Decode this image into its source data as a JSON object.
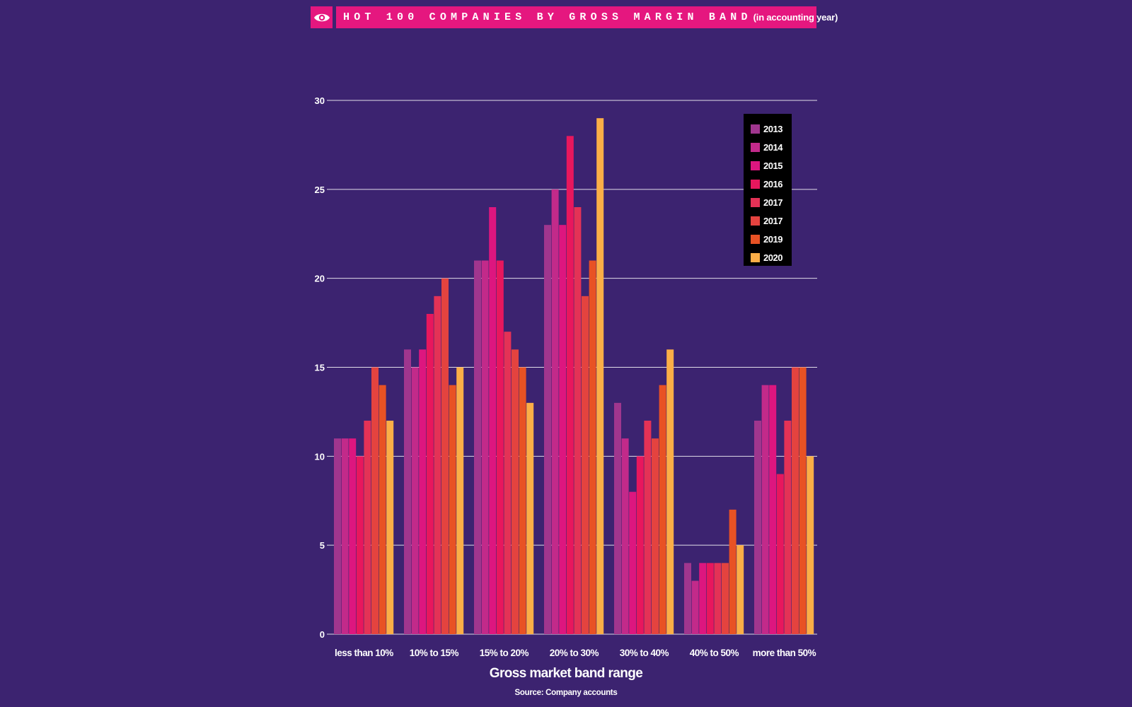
{
  "header": {
    "title": "HOT 100 COMPANIES BY GROSS MARGIN BAND",
    "subtitle": "(in accounting year)"
  },
  "icons": {
    "header_icon": "eye-icon"
  },
  "footer": {
    "source": "Source: Company accounts"
  },
  "chart_data": {
    "type": "bar",
    "title": "HOT 100 COMPANIES BY GROSS MARGIN BAND (in accounting year)",
    "xlabel": "Gross market band range",
    "ylabel": "",
    "ylim": [
      0,
      30
    ],
    "yticks": [
      0,
      5,
      10,
      15,
      20,
      25,
      30
    ],
    "grid": true,
    "legend_position": "top-right",
    "categories": [
      "less than 10%",
      "10% to 15%",
      "15% to 20%",
      "20% to 30%",
      "30% to 40%",
      "40% to 50%",
      "more than 50%"
    ],
    "series": [
      {
        "name": "2013",
        "color": "#a0368e",
        "values": [
          11,
          16,
          21,
          23,
          13,
          4,
          12
        ]
      },
      {
        "name": "2014",
        "color": "#c22a8a",
        "values": [
          11,
          15,
          21,
          25,
          11,
          3,
          14
        ]
      },
      {
        "name": "2015",
        "color": "#dd167f",
        "values": [
          11,
          16,
          24,
          23,
          8,
          4,
          14
        ]
      },
      {
        "name": "2016",
        "color": "#e8175d",
        "values": [
          10,
          18,
          21,
          28,
          10,
          4,
          9
        ]
      },
      {
        "name": "2017",
        "color": "#e43256",
        "values": [
          12,
          19,
          17,
          24,
          12,
          4,
          12
        ]
      },
      {
        "name": "2017",
        "color": "#e4433f",
        "values": [
          15,
          20,
          16,
          19,
          11,
          4,
          15
        ]
      },
      {
        "name": "2019",
        "color": "#e85224",
        "values": [
          14,
          14,
          15,
          21,
          14,
          7,
          15
        ]
      },
      {
        "name": "2020",
        "color": "#fbae47",
        "values": [
          12,
          15,
          13,
          29,
          16,
          5,
          10
        ]
      }
    ]
  }
}
